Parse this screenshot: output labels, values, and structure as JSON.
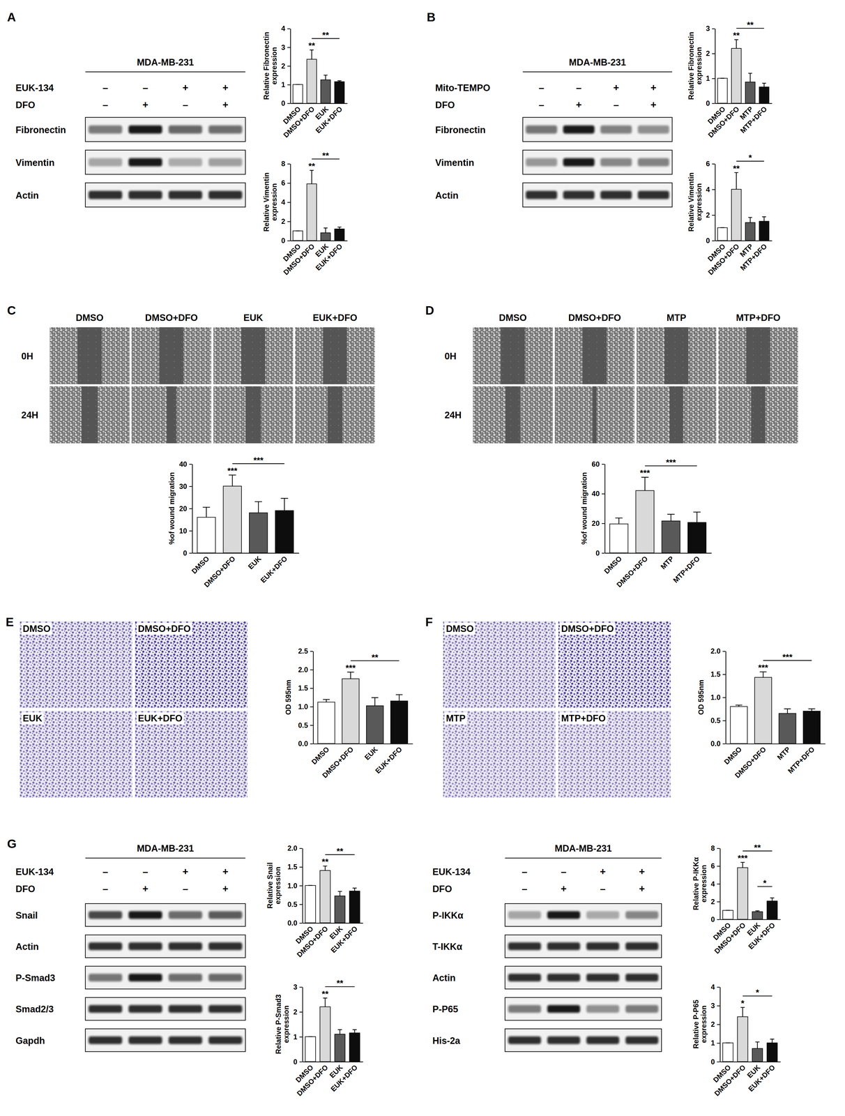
{
  "panels": [
    {
      "letter": "A",
      "blots": [
        {
          "cell_line": "MDA-MB-231",
          "treatments": [
            {
              "name": "EUK-134",
              "signs": [
                "–",
                "–",
                "+",
                "+"
              ]
            },
            {
              "name": "DFO",
              "signs": [
                "–",
                "+",
                "–",
                "+"
              ]
            }
          ],
          "rows": [
            "Fibronectin",
            "Vimentin",
            "Actin"
          ]
        }
      ]
    },
    {
      "letter": "B",
      "blots": [
        {
          "cell_line": "MDA-MB-231",
          "treatments": [
            {
              "name": "Mito-TEMPO",
              "signs": [
                "–",
                "–",
                "+",
                "+"
              ]
            },
            {
              "name": "DFO",
              "signs": [
                "–",
                "+",
                "–",
                "+"
              ]
            }
          ],
          "rows": [
            "Fibronectin",
            "Vimentin",
            "Actin"
          ]
        }
      ]
    },
    {
      "letter": "C",
      "images": {
        "columns": [
          "DMSO",
          "DMSO+DFO",
          "EUK",
          "EUK+DFO"
        ],
        "rows": [
          "0H",
          "24H"
        ]
      }
    },
    {
      "letter": "D",
      "images": {
        "columns": [
          "DMSO",
          "DMSO+DFO",
          "MTP",
          "MTP+DFO"
        ],
        "rows": [
          "0H",
          "24H"
        ]
      }
    },
    {
      "letter": "E",
      "images": {
        "labels": [
          "DMSO",
          "DMSO+DFO",
          "EUK",
          "EUK+DFO"
        ]
      }
    },
    {
      "letter": "F",
      "images": {
        "labels": [
          "DMSO",
          "DMSO+DFO",
          "MTP",
          "MTP+DFO"
        ]
      }
    },
    {
      "letter": "G",
      "blots": [
        {
          "cell_line": "MDA-MB-231",
          "treatments": [
            {
              "name": "EUK-134",
              "signs": [
                "–",
                "–",
                "+",
                "+"
              ]
            },
            {
              "name": "DFO",
              "signs": [
                "–",
                "+",
                "–",
                "+"
              ]
            }
          ],
          "rows": [
            "Snail",
            "Actin",
            "P-Smad3",
            "Smad2/3",
            "Gapdh"
          ]
        },
        {
          "cell_line": "MDA-MB-231",
          "treatments": [
            {
              "name": "EUK-134",
              "signs": [
                "–",
                "–",
                "+",
                "+"
              ]
            },
            {
              "name": "DFO",
              "signs": [
                "–",
                "+",
                "–",
                "+"
              ]
            }
          ],
          "rows": [
            "P-IKKα",
            "T-IKKα",
            "Actin",
            "P-P65",
            "His-2a"
          ]
        }
      ]
    }
  ],
  "chart_data": [
    {
      "type": "bar",
      "y_label": [
        "Relative Fibronectin",
        "expression"
      ],
      "categories": [
        "DMSO",
        "DMSO+DFO",
        "EUK",
        "EUK+DFO"
      ],
      "values": [
        1,
        2.35,
        1.25,
        1.15
      ],
      "errors": [
        0,
        0.5,
        0.25,
        0.05
      ],
      "colors": [
        "#ffffff",
        "#d9d9d9",
        "#595959",
        "#0d0d0d"
      ],
      "ylim": [
        0,
        4
      ],
      "yticks": [
        0,
        1,
        2,
        3,
        4
      ],
      "annotations": [
        {
          "text": "**",
          "bar": 1
        },
        {
          "text": "**",
          "from": 1,
          "to": 3
        }
      ]
    },
    {
      "type": "bar",
      "y_label": [
        "Relative Vimentin",
        "expression"
      ],
      "categories": [
        "DMSO",
        "DMSO+DFO",
        "EUK",
        "EUK+DFO"
      ],
      "values": [
        1,
        5.9,
        0.8,
        1.2
      ],
      "errors": [
        0,
        1.4,
        0.5,
        0.2
      ],
      "colors": [
        "#ffffff",
        "#d9d9d9",
        "#595959",
        "#0d0d0d"
      ],
      "ylim": [
        0,
        8
      ],
      "yticks": [
        0,
        2,
        4,
        6,
        8
      ],
      "annotations": [
        {
          "text": "**",
          "bar": 1
        },
        {
          "text": "**",
          "from": 1,
          "to": 3
        }
      ]
    },
    {
      "type": "bar",
      "y_label": [
        "Relative Fibronectin",
        "expression"
      ],
      "categories": [
        "DMSO",
        "DMSO+DFO",
        "MTP",
        "MTP+DFO"
      ],
      "values": [
        1,
        2.2,
        0.85,
        0.65
      ],
      "errors": [
        0,
        0.35,
        0.35,
        0.15
      ],
      "colors": [
        "#ffffff",
        "#d9d9d9",
        "#595959",
        "#0d0d0d"
      ],
      "ylim": [
        0,
        3
      ],
      "yticks": [
        0,
        1,
        2,
        3
      ],
      "annotations": [
        {
          "text": "**",
          "bar": 1
        },
        {
          "text": "**",
          "from": 1,
          "to": 3
        }
      ]
    },
    {
      "type": "bar",
      "y_label": [
        "Relative Vimentin",
        "expression"
      ],
      "categories": [
        "DMSO",
        "DMSO+DFO",
        "MTP",
        "MTP+DFO"
      ],
      "values": [
        1,
        4.0,
        1.4,
        1.5
      ],
      "errors": [
        0,
        1.3,
        0.4,
        0.35
      ],
      "colors": [
        "#ffffff",
        "#d9d9d9",
        "#595959",
        "#0d0d0d"
      ],
      "ylim": [
        0,
        6
      ],
      "yticks": [
        0,
        2,
        4,
        6
      ],
      "annotations": [
        {
          "text": "**",
          "bar": 1
        },
        {
          "text": "*",
          "from": 1,
          "to": 3
        }
      ]
    },
    {
      "type": "bar",
      "y_label": [
        "%of wound migration"
      ],
      "categories": [
        "DMSO",
        "DMSO+DFO",
        "EUK",
        "EUK+DFO"
      ],
      "values": [
        16,
        30,
        18,
        19
      ],
      "errors": [
        4.5,
        5,
        5,
        5.5
      ],
      "colors": [
        "#ffffff",
        "#d9d9d9",
        "#595959",
        "#0d0d0d"
      ],
      "ylim": [
        0,
        40
      ],
      "yticks": [
        0,
        10,
        20,
        30,
        40
      ],
      "annotations": [
        {
          "text": "***",
          "bar": 1
        },
        {
          "text": "***",
          "from": 1,
          "to": 3
        }
      ]
    },
    {
      "type": "bar",
      "y_label": [
        "%of wound migration"
      ],
      "categories": [
        "DMSO",
        "DMSO+DFO",
        "MTP",
        "MTP+DFO"
      ],
      "values": [
        19.5,
        42,
        21.5,
        20.5
      ],
      "errors": [
        4,
        9,
        4.5,
        7
      ],
      "colors": [
        "#ffffff",
        "#d9d9d9",
        "#595959",
        "#0d0d0d"
      ],
      "ylim": [
        0,
        60
      ],
      "yticks": [
        0,
        20,
        40,
        60
      ],
      "annotations": [
        {
          "text": "***",
          "bar": 1
        },
        {
          "text": "***",
          "from": 1,
          "to": 3
        }
      ]
    },
    {
      "type": "bar",
      "y_label": [
        "OD 595nm"
      ],
      "categories": [
        "DMSO",
        "DMSO+DFO",
        "EUK",
        "EUK+DFO"
      ],
      "values": [
        1.12,
        1.75,
        1.02,
        1.15
      ],
      "errors": [
        0.07,
        0.18,
        0.22,
        0.17
      ],
      "colors": [
        "#ffffff",
        "#d9d9d9",
        "#595959",
        "#0d0d0d"
      ],
      "ylim": [
        0,
        2.5
      ],
      "yticks": [
        {
          "value": 0,
          "label": "0.0"
        },
        0.5,
        {
          "value": 1,
          "label": "1.0"
        },
        1.5,
        {
          "value": 2,
          "label": "2.0"
        },
        2.5
      ],
      "annotations": [
        {
          "text": "***",
          "bar": 1
        },
        {
          "text": "**",
          "from": 1,
          "to": 3
        }
      ]
    },
    {
      "type": "bar",
      "y_label": [
        "OD 595nm"
      ],
      "categories": [
        "DMSO",
        "DMSO+DFO",
        "MTP",
        "MTP+DFO"
      ],
      "values": [
        0.8,
        1.43,
        0.65,
        0.7
      ],
      "errors": [
        0.03,
        0.12,
        0.1,
        0.05
      ],
      "colors": [
        "#ffffff",
        "#d9d9d9",
        "#595959",
        "#0d0d0d"
      ],
      "ylim": [
        0,
        2
      ],
      "yticks": [
        {
          "value": 0,
          "label": "0.0"
        },
        0.5,
        {
          "value": 1,
          "label": "1.0"
        },
        1.5,
        {
          "value": 2,
          "label": "2.0"
        }
      ],
      "annotations": [
        {
          "text": "***",
          "bar": 1
        },
        {
          "text": "***",
          "from": 1,
          "to": 3
        }
      ]
    },
    {
      "type": "bar",
      "y_label": [
        "Relative Snail",
        "expression"
      ],
      "categories": [
        "DMSO",
        "DMSO+DFO",
        "EUK",
        "EUK+DFO"
      ],
      "values": [
        1,
        1.4,
        0.72,
        0.85
      ],
      "errors": [
        0,
        0.12,
        0.12,
        0.08
      ],
      "colors": [
        "#ffffff",
        "#d9d9d9",
        "#595959",
        "#0d0d0d"
      ],
      "ylim": [
        0,
        2
      ],
      "yticks": [
        {
          "value": 0,
          "label": "0.0"
        },
        0.5,
        {
          "value": 1,
          "label": "1.0"
        },
        1.5,
        {
          "value": 2,
          "label": "2.0"
        }
      ],
      "annotations": [
        {
          "text": "**",
          "bar": 1
        },
        {
          "text": "**",
          "from": 1,
          "to": 3
        }
      ]
    },
    {
      "type": "bar",
      "y_label": [
        "Relative P-Smad3",
        "expression"
      ],
      "categories": [
        "DMSO",
        "DMSO+DFO",
        "EUK",
        "EUK+DFO"
      ],
      "values": [
        1,
        2.2,
        1.1,
        1.15
      ],
      "errors": [
        0,
        0.35,
        0.18,
        0.13
      ],
      "colors": [
        "#ffffff",
        "#d9d9d9",
        "#595959",
        "#0d0d0d"
      ],
      "ylim": [
        0,
        3
      ],
      "yticks": [
        0,
        1,
        2,
        3
      ],
      "annotations": [
        {
          "text": "**",
          "bar": 1
        },
        {
          "text": "**",
          "from": 1,
          "to": 3
        }
      ]
    },
    {
      "type": "bar",
      "y_label": [
        "Relative P-IKKα",
        "expression"
      ],
      "categories": [
        "DMSO",
        "DMSO+DFO",
        "EUK",
        "EUK+DFO"
      ],
      "values": [
        1,
        5.8,
        0.85,
        2.05
      ],
      "errors": [
        0,
        0.6,
        0.1,
        0.35
      ],
      "colors": [
        "#ffffff",
        "#d9d9d9",
        "#595959",
        "#0d0d0d"
      ],
      "ylim": [
        0,
        8
      ],
      "yticks": [
        0,
        2,
        4,
        6,
        8
      ],
      "annotations": [
        {
          "text": "***",
          "bar": 1
        },
        {
          "text": "**",
          "from": 1,
          "to": 3
        },
        {
          "text": "*",
          "from": 2,
          "to": 3
        }
      ]
    },
    {
      "type": "bar",
      "y_label": [
        "Relative P-P65",
        "expression"
      ],
      "categories": [
        "DMSO",
        "DMSO+DFO",
        "EUK",
        "EUK+DFO"
      ],
      "values": [
        1,
        2.4,
        0.7,
        1.0
      ],
      "errors": [
        0,
        0.5,
        0.35,
        0.2
      ],
      "colors": [
        "#ffffff",
        "#d9d9d9",
        "#595959",
        "#0d0d0d"
      ],
      "ylim": [
        0,
        4
      ],
      "yticks": [
        0,
        1,
        2,
        3,
        4
      ],
      "annotations": [
        {
          "text": "*",
          "bar": 1
        },
        {
          "text": "*",
          "from": 1,
          "to": 3
        }
      ]
    }
  ]
}
